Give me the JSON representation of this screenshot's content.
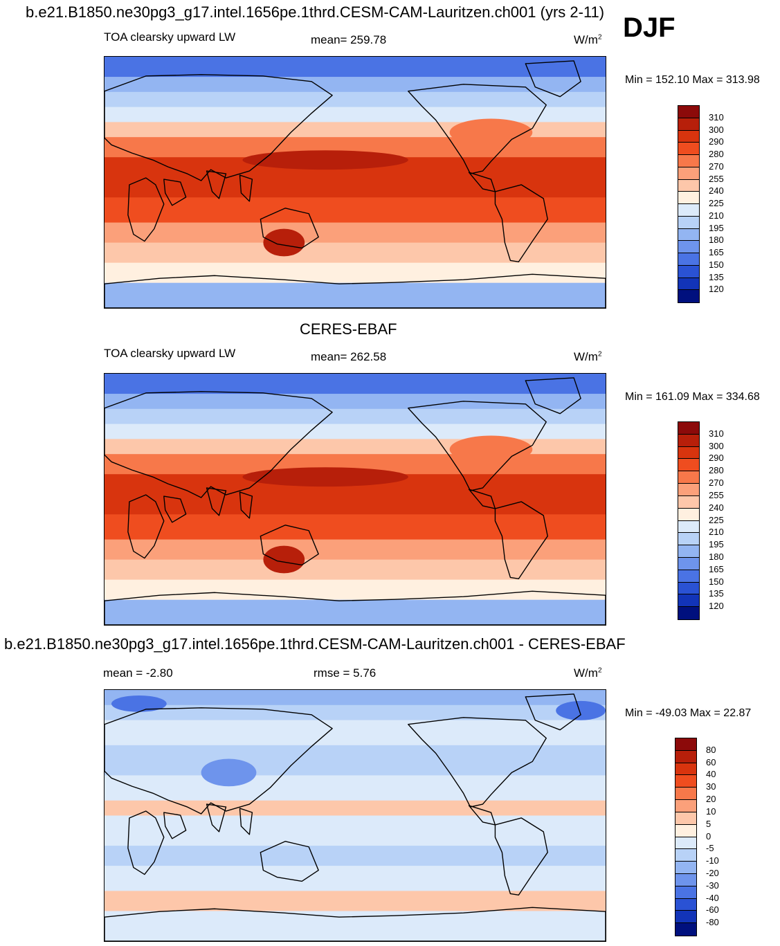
{
  "chart_data": [
    {
      "type": "heatmap",
      "title": "b.e21.B1850.ne30pg3_g17.intel.1656pe.1thrd.CESM-CAM-Lauritzen.ch001 (yrs 2-11)",
      "season": "DJF",
      "variable": "TOA clearsky upward LW",
      "stat_label": "mean= 259.78",
      "units": "W/m",
      "units_sup": "2",
      "minmax": "Min = 152.10 Max = 313.98",
      "mean": 259.78,
      "min": 152.1,
      "max": 313.98,
      "colorbar_levels": [
        "310",
        "300",
        "290",
        "280",
        "270",
        "255",
        "240",
        "225",
        "210",
        "195",
        "180",
        "165",
        "150",
        "135",
        "120"
      ],
      "colorbar_colors": [
        "#8c0a0a",
        "#b71f0a",
        "#d8340e",
        "#ef4d1f",
        "#f7784a",
        "#fba07a",
        "#fdc7aa",
        "#fff0e0",
        "#dceafa",
        "#b8d2f7",
        "#93b5f2",
        "#6e94ec",
        "#4a73e4",
        "#2a52d4",
        "#1234b8",
        "#00107e"
      ]
    },
    {
      "type": "heatmap",
      "title": "CERES-EBAF",
      "variable": "TOA clearsky upward LW",
      "stat_label": "mean= 262.58",
      "units": "W/m",
      "units_sup": "2",
      "minmax": "Min = 161.09 Max = 334.68",
      "mean": 262.58,
      "min": 161.09,
      "max": 334.68,
      "colorbar_levels": [
        "310",
        "300",
        "290",
        "280",
        "270",
        "255",
        "240",
        "225",
        "210",
        "195",
        "180",
        "165",
        "150",
        "135",
        "120"
      ],
      "colorbar_colors": [
        "#8c0a0a",
        "#b71f0a",
        "#d8340e",
        "#ef4d1f",
        "#f7784a",
        "#fba07a",
        "#fdc7aa",
        "#fff0e0",
        "#dceafa",
        "#b8d2f7",
        "#93b5f2",
        "#6e94ec",
        "#4a73e4",
        "#2a52d4",
        "#1234b8",
        "#00107e"
      ]
    },
    {
      "type": "heatmap",
      "title": "b.e21.B1850.ne30pg3_g17.intel.1656pe.1thrd.CESM-CAM-Lauritzen.ch001 - CERES-EBAF",
      "stat_label": "mean =  -2.80",
      "rmse_label": "rmse =   5.76",
      "units": "W/m",
      "units_sup": "2",
      "minmax": "Min = -49.03 Max =  22.87",
      "mean": -2.8,
      "rmse": 5.76,
      "min": -49.03,
      "max": 22.87,
      "colorbar_levels": [
        "80",
        "60",
        "40",
        "30",
        "20",
        "10",
        "5",
        "0",
        "-5",
        "-10",
        "-20",
        "-30",
        "-40",
        "-60",
        "-80"
      ],
      "colorbar_colors": [
        "#8c0a0a",
        "#b71f0a",
        "#d8340e",
        "#ef4d1f",
        "#f7784a",
        "#fba07a",
        "#fdc7aa",
        "#fff0e0",
        "#dceafa",
        "#b8d2f7",
        "#93b5f2",
        "#6e94ec",
        "#4a73e4",
        "#2a52d4",
        "#1234b8",
        "#00107e"
      ]
    }
  ]
}
